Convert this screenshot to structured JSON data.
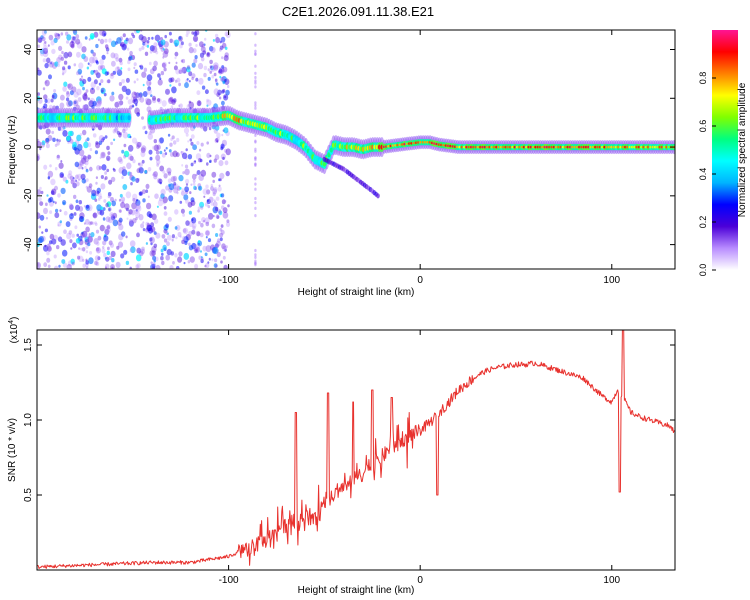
{
  "title": "C2E1.2026.091.11.38.E21",
  "chart_data": [
    {
      "type": "heatmap",
      "title": "C2E1.2026.091.11.38.E21",
      "xlabel": "Height of straight line (km)",
      "ylabel": "Frequency (Hz)",
      "xlim": [
        -200,
        133
      ],
      "ylim": [
        -50,
        48
      ],
      "xticks": [
        -100,
        0,
        100
      ],
      "xtick_labels": [
        "-100",
        "0",
        "100"
      ],
      "yticks": [
        -40,
        -20,
        0,
        20,
        40
      ],
      "ytick_labels": [
        "-40",
        "-20",
        "0",
        "20",
        "40"
      ],
      "colorbar": {
        "label": "Normalized spectral amplitude",
        "range": [
          0,
          1
        ],
        "ticks": [
          0.0,
          0.2,
          0.4,
          0.6,
          0.8
        ],
        "tick_labels": [
          "0.0",
          "0.2",
          "0.4",
          "0.6",
          "0.8"
        ],
        "colormap": [
          "#ffffff",
          "#b88cff",
          "#4b00d8",
          "#0000ff",
          "#00b4ff",
          "#00ffff",
          "#00ff80",
          "#80ff00",
          "#ffff00",
          "#ff8000",
          "#ff0000",
          "#ff1493"
        ]
      },
      "ridge": {
        "x": [
          -195,
          -180,
          -160,
          -150,
          -140,
          -130,
          -120,
          -110,
          -100,
          -95,
          -90,
          -85,
          -80,
          -75,
          -70,
          -65,
          -60,
          -55,
          -50,
          -45,
          -40,
          -35,
          -30,
          -25,
          -20,
          -10,
          0,
          5,
          10,
          20,
          40,
          60,
          80,
          100,
          133
        ],
        "y": [
          12,
          12,
          12,
          12,
          11,
          12,
          12,
          12,
          13,
          11,
          10,
          9,
          8,
          6,
          5,
          3,
          0,
          -5,
          -7,
          1,
          0,
          0,
          -1,
          0,
          0,
          1,
          2,
          2,
          1,
          0,
          0,
          0,
          0,
          0,
          0
        ],
        "amplitude": [
          0.5,
          0.55,
          0.5,
          0.2,
          0.5,
          0.55,
          0.55,
          0.6,
          0.7,
          0.75,
          0.7,
          0.7,
          0.65,
          0.6,
          0.6,
          0.55,
          0.55,
          0.5,
          0.55,
          0.6,
          0.65,
          0.7,
          0.75,
          0.8,
          0.85,
          0.85,
          0.9,
          0.9,
          0.85,
          0.85,
          0.85,
          0.85,
          0.85,
          0.8,
          0.75
        ]
      },
      "branch": {
        "x": [
          -50,
          -45,
          -40,
          -35,
          -30,
          -25,
          -22
        ],
        "y": [
          -5,
          -7,
          -9,
          -12,
          -15,
          -18,
          -20
        ]
      }
    },
    {
      "type": "line",
      "xlabel": "Height of straight line (km)",
      "ylabel": "SNR (10 * v/v)",
      "multiplier": "(x10",
      "multiplier_exp": "4",
      "multiplier_close": ")",
      "xlim": [
        -200,
        133
      ],
      "ylim": [
        0,
        1.6
      ],
      "xticks": [
        -100,
        0,
        100
      ],
      "xtick_labels": [
        "-100",
        "0",
        "100"
      ],
      "yticks": [
        0.5,
        1.0,
        1.5
      ],
      "ytick_labels": [
        "0.5",
        "1.0",
        "1.5"
      ],
      "color": "#e8322e",
      "series": [
        {
          "name": "SNR",
          "x": [
            -200,
            -180,
            -160,
            -140,
            -120,
            -110,
            -100,
            -95,
            -90,
            -85,
            -80,
            -75,
            -70,
            -65,
            -60,
            -55,
            -50,
            -45,
            -40,
            -35,
            -30,
            -25,
            -20,
            -15,
            -10,
            -5,
            0,
            5,
            10,
            15,
            20,
            25,
            30,
            35,
            40,
            45,
            50,
            55,
            60,
            65,
            70,
            75,
            80,
            85,
            90,
            95,
            100,
            103,
            106,
            110,
            115,
            120,
            125,
            130,
            133
          ],
          "y": [
            0.02,
            0.03,
            0.04,
            0.05,
            0.05,
            0.07,
            0.09,
            0.12,
            0.14,
            0.17,
            0.2,
            0.27,
            0.3,
            0.33,
            0.36,
            0.33,
            0.42,
            0.5,
            0.56,
            0.6,
            0.64,
            0.7,
            0.76,
            0.8,
            0.86,
            0.9,
            0.93,
            0.98,
            1.05,
            1.12,
            1.2,
            1.25,
            1.3,
            1.33,
            1.35,
            1.36,
            1.37,
            1.37,
            1.38,
            1.36,
            1.34,
            1.32,
            1.3,
            1.28,
            1.22,
            1.16,
            1.12,
            1.2,
            1.15,
            1.05,
            1.02,
            1.0,
            0.98,
            0.96,
            0.92
          ]
        }
      ],
      "spikes": [
        {
          "x": -48,
          "y": 1.18
        },
        {
          "x": -65,
          "y": 1.05
        },
        {
          "x": -35,
          "y": 1.12
        },
        {
          "x": -25,
          "y": 1.2
        },
        {
          "x": -15,
          "y": 1.15
        },
        {
          "x": 9,
          "y": 0.5
        },
        {
          "x": 104,
          "y": 0.52
        },
        {
          "x": 106,
          "y": 1.6
        }
      ]
    }
  ]
}
